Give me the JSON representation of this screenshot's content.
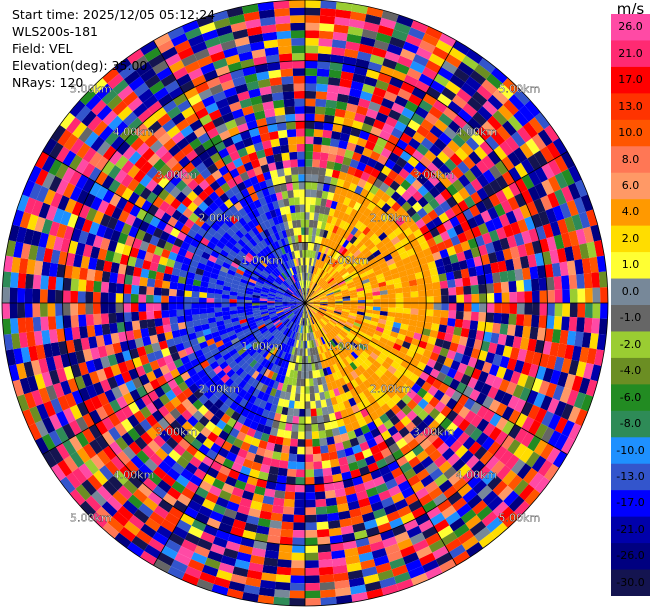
{
  "info": {
    "start_time": "Start time: 2025/12/05 05:12:24",
    "instrument": "WLS200s-181",
    "field": "Field: VEL",
    "elevation": "Elevation(deg): 35.00",
    "nrays": "NRays: 120"
  },
  "colorbar": {
    "unit": "m/s",
    "ticks": [
      "26.0",
      "21.0",
      "17.0",
      "13.0",
      "10.0",
      "8.0",
      "6.0",
      "4.0",
      "2.0",
      "1.0",
      "0.0",
      "-1.0",
      "-2.0",
      "-4.0",
      "-6.0",
      "-8.0",
      "-10.0",
      "-13.0",
      "-17.0",
      "-21.0",
      "-26.0",
      "-30.0"
    ],
    "colors": [
      "#ff4aa5",
      "#ff2a72",
      "#ff0000",
      "#ff3300",
      "#ff5500",
      "#ff7755",
      "#ff9966",
      "#ff9900",
      "#ffdd00",
      "#ffff33",
      "#778899",
      "#666666",
      "#9acd32",
      "#6b8e23",
      "#228b22",
      "#2e8b57",
      "#1e90ff",
      "#3355cc",
      "#0000ff",
      "#0000aa",
      "#000080",
      "#141450"
    ]
  },
  "chart_data": {
    "type": "heatmap",
    "subtype": "polar-ppi",
    "field": "VEL",
    "units": "m/s",
    "nrays": 120,
    "range_max_km": 5.0,
    "range_ring_labels": [
      "1.00km",
      "2.00km",
      "3.00km",
      "4.00km",
      "5.00km"
    ],
    "color_levels": [
      -30.0,
      -26.0,
      -21.0,
      -17.0,
      -13.0,
      -10.0,
      -8.0,
      -6.0,
      -4.0,
      -2.0,
      -1.0,
      0.0,
      1.0,
      2.0,
      4.0,
      6.0,
      8.0,
      10.0,
      13.0,
      17.0,
      21.0,
      26.0
    ],
    "pattern": {
      "near_range_limit_km": 2.3,
      "near_range_east_velocity": 4.0,
      "near_range_west_velocity": -13.0,
      "far_range": "noise"
    }
  }
}
